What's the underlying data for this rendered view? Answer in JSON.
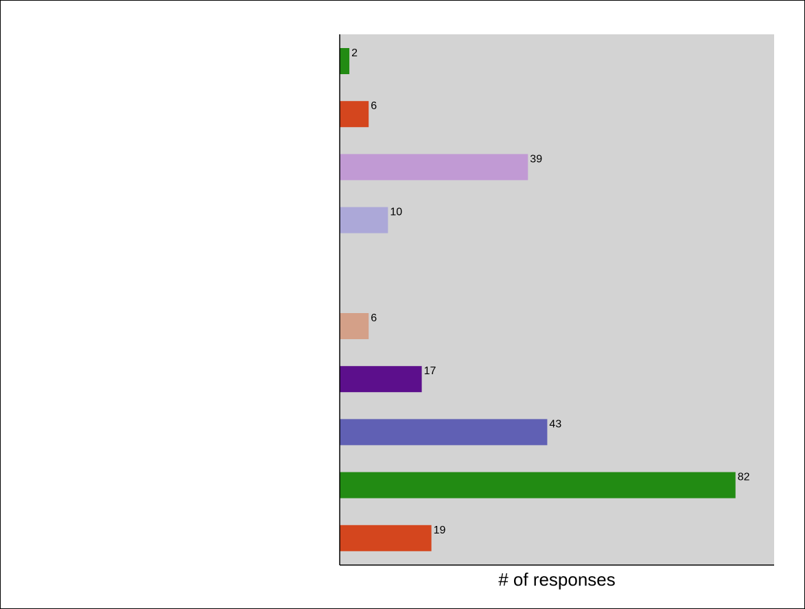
{
  "chart_data": {
    "type": "bar",
    "orientation": "horizontal",
    "title": "",
    "xlabel": "# of responses",
    "ylabel": "",
    "xlim": [
      0,
      90
    ],
    "grid": false,
    "legend": "none",
    "plot_background": "#d3d3d3",
    "rows": [
      {
        "value": 2,
        "label": "2",
        "color": "#228b13"
      },
      {
        "value": 6,
        "label": "6",
        "color": "#d4461e"
      },
      {
        "value": 39,
        "label": "39",
        "color": "#c19ad4"
      },
      {
        "value": 10,
        "label": "10",
        "color": "#aca8d8"
      },
      {
        "value": null,
        "label": "",
        "color": ""
      },
      {
        "value": 6,
        "label": "6",
        "color": "#d4a088"
      },
      {
        "value": 17,
        "label": "17",
        "color": "#5c0f8c"
      },
      {
        "value": 43,
        "label": "43",
        "color": "#6060b4"
      },
      {
        "value": 82,
        "label": "82",
        "color": "#228b13"
      },
      {
        "value": 19,
        "label": "19",
        "color": "#d4461e"
      }
    ]
  }
}
